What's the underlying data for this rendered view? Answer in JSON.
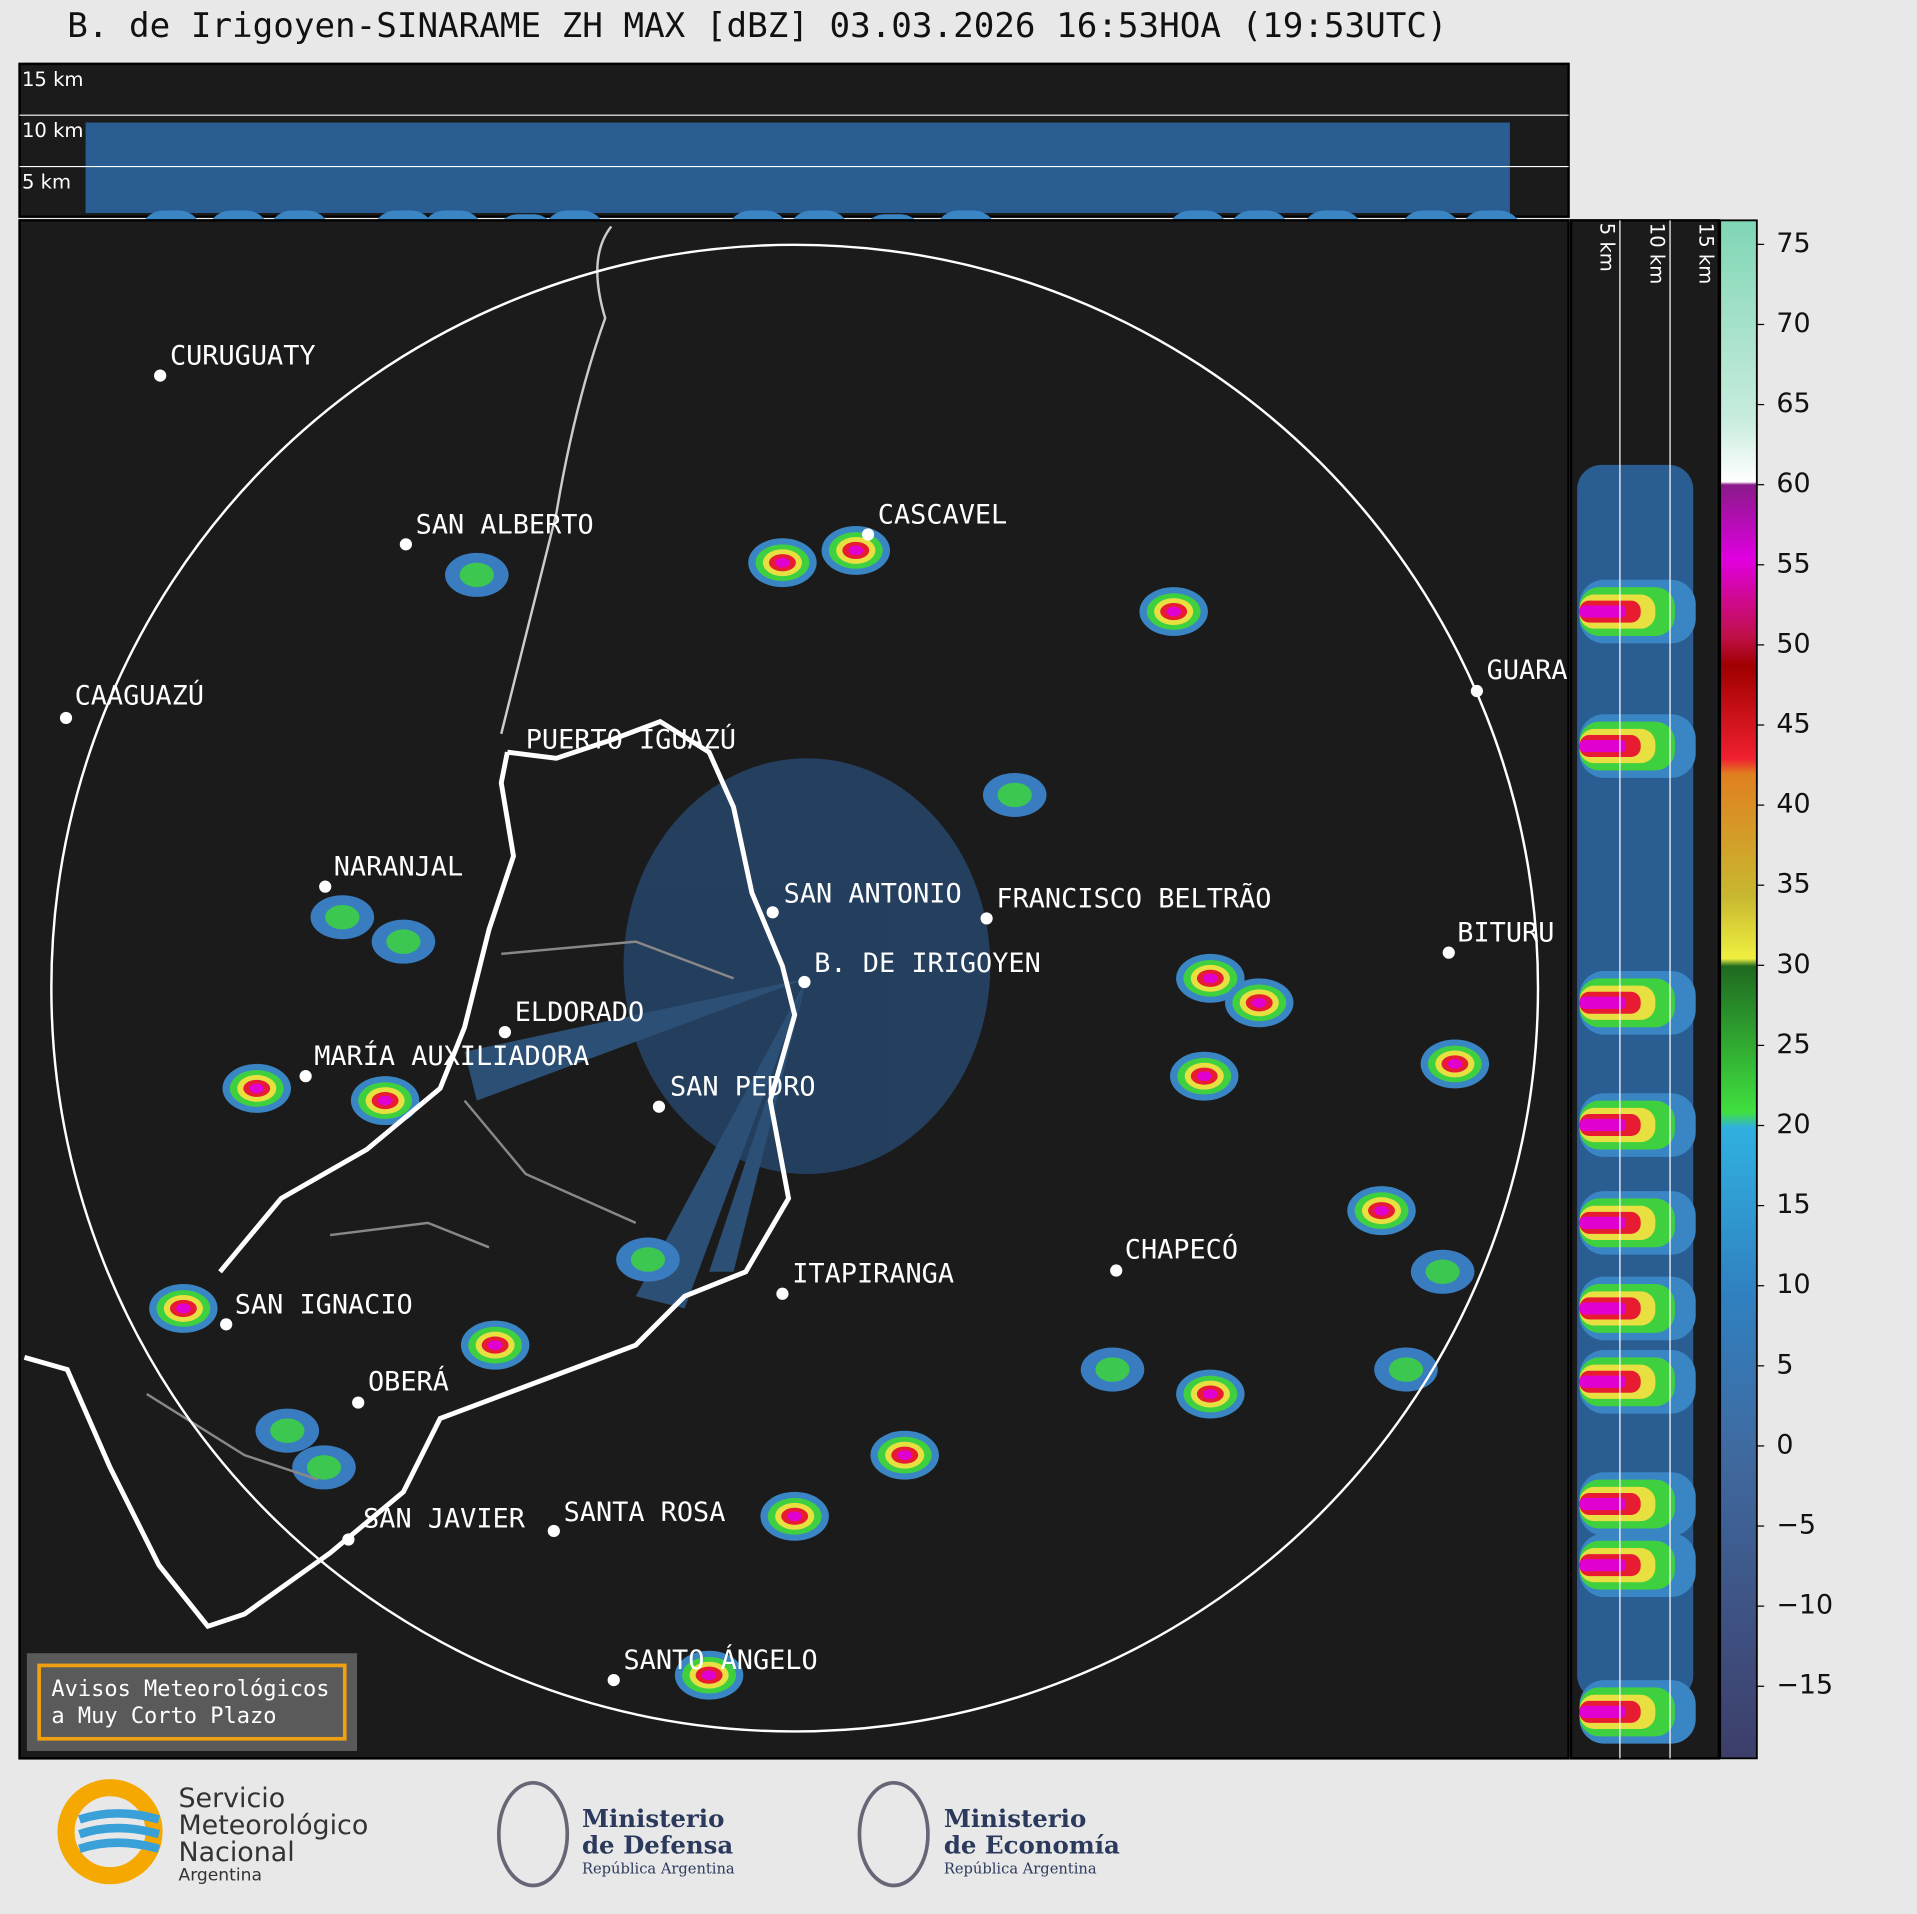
{
  "header": {
    "title": "B. de Irigoyen-SINARAME ZH MAX [dBZ] 03.03.2026 16:53HOA (19:53UTC)"
  },
  "top_panel": {
    "heights": [
      "15 km",
      "10 km",
      "5 km"
    ]
  },
  "side_panel": {
    "heights": [
      "5 km",
      "10 km",
      "15 km"
    ]
  },
  "map": {
    "cities": [
      "CURUGUATY",
      "SAN ALBERTO",
      "CASCAVEL",
      "CAAGUAZÚ",
      "GUARA",
      "PUERTO IGUAZÚ",
      "NARANJAL",
      "SAN ANTONIO",
      "FRANCISCO BELTRÃO",
      "BITURU",
      "B. DE IRIGOYEN",
      "ELDORADO",
      "MARÍA AUXILIADORA",
      "SAN PEDRO",
      "CHAPECÓ",
      "ITAPIRANGA",
      "SAN IGNACIO",
      "OBERÁ",
      "SAN JAVIER",
      "SANTA ROSA",
      "SANTO ÁNGELO"
    ]
  },
  "colorbar": {
    "lim": [
      -19.5,
      76.5
    ],
    "ticks": [
      75,
      70,
      65,
      60,
      55,
      50,
      45,
      40,
      35,
      30,
      25,
      20,
      15,
      10,
      5,
      0,
      {
        "value": -5,
        "label": "−5"
      },
      {
        "value": -10,
        "label": "−10"
      },
      {
        "value": -15,
        "label": "−15"
      }
    ]
  },
  "warning_box": {
    "lines": [
      "Avisos Meteorológicos",
      "a Muy Corto Plazo"
    ]
  },
  "footer": {
    "smn": [
      "Servicio",
      "Meteorológico",
      "Nacional",
      "Argentina"
    ],
    "defensa": [
      "Ministerio",
      "de Defensa",
      "República Argentina"
    ],
    "economia": [
      "Ministerio",
      "de Economía",
      "República Argentina"
    ]
  }
}
